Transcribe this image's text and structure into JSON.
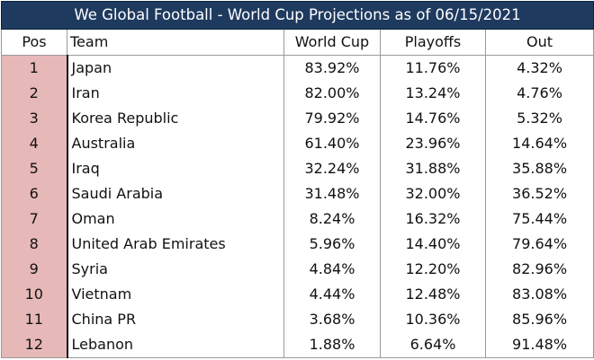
{
  "title": "We Global Football - World Cup Projections as of 06/15/2021",
  "columns": {
    "pos": "Pos",
    "team": "Team",
    "world_cup": "World Cup",
    "playoffs": "Playoffs",
    "out": "Out"
  },
  "rows": [
    {
      "pos": "1",
      "team": "Japan",
      "world_cup": "83.92%",
      "playoffs": "11.76%",
      "out": "4.32%"
    },
    {
      "pos": "2",
      "team": "Iran",
      "world_cup": "82.00%",
      "playoffs": "13.24%",
      "out": "4.76%"
    },
    {
      "pos": "3",
      "team": "Korea Republic",
      "world_cup": "79.92%",
      "playoffs": "14.76%",
      "out": "5.32%"
    },
    {
      "pos": "4",
      "team": "Australia",
      "world_cup": "61.40%",
      "playoffs": "23.96%",
      "out": "14.64%"
    },
    {
      "pos": "5",
      "team": "Iraq",
      "world_cup": "32.24%",
      "playoffs": "31.88%",
      "out": "35.88%"
    },
    {
      "pos": "6",
      "team": "Saudi Arabia",
      "world_cup": "31.48%",
      "playoffs": "32.00%",
      "out": "36.52%"
    },
    {
      "pos": "7",
      "team": "Oman",
      "world_cup": "8.24%",
      "playoffs": "16.32%",
      "out": "75.44%"
    },
    {
      "pos": "8",
      "team": "United Arab Emirates",
      "world_cup": "5.96%",
      "playoffs": "14.40%",
      "out": "79.64%"
    },
    {
      "pos": "9",
      "team": "Syria",
      "world_cup": "4.84%",
      "playoffs": "12.20%",
      "out": "82.96%"
    },
    {
      "pos": "10",
      "team": "Vietnam",
      "world_cup": "4.44%",
      "playoffs": "12.48%",
      "out": "83.08%"
    },
    {
      "pos": "11",
      "team": "China PR",
      "world_cup": "3.68%",
      "playoffs": "10.36%",
      "out": "85.96%"
    },
    {
      "pos": "12",
      "team": "Lebanon",
      "world_cup": "1.88%",
      "playoffs": "6.64%",
      "out": "91.48%"
    }
  ],
  "colors": {
    "title_bg": "#1f3a5f",
    "title_text": "#ffffff",
    "pos_fill": "#e6b8b7",
    "grid": "#9a9a9a"
  }
}
